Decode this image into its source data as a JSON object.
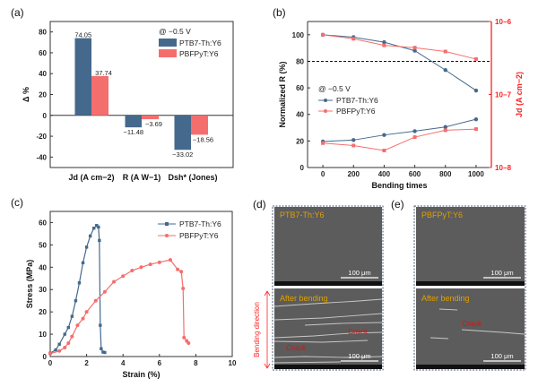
{
  "colors": {
    "blue": "#45698c",
    "red": "#f56e6e",
    "axis_red": "#ff2020",
    "sem_label": "#e0a000",
    "crack": "#e01010"
  },
  "panel_labels": [
    "(a)",
    "(b)",
    "(c)",
    "(d)",
    "(e)"
  ],
  "chart_data": [
    {
      "type": "bar",
      "panel": "(a)",
      "ylabel": "Δ %",
      "ylim": [
        -50,
        90
      ],
      "yticks": [
        -40,
        -20,
        0,
        20,
        40,
        60,
        80
      ],
      "categories": [
        "Jd (A cm−2)",
        "R (A W−1)",
        "Dsh* (Jones)"
      ],
      "legend_title": "@ −0.5 V",
      "series": [
        {
          "name": "PTB7-Th:Y6",
          "values": [
            74.05,
            -11.48,
            -33.02
          ],
          "labels": [
            "74.05",
            "−11.48",
            "−33.02"
          ]
        },
        {
          "name": "PBFPyT:Y6",
          "values": [
            37.74,
            -3.69,
            -18.56
          ],
          "labels": [
            "37.74",
            "−3.69",
            "−18.56"
          ]
        }
      ]
    },
    {
      "type": "line",
      "panel": "(b)",
      "xlabel": "Bending times",
      "ylabel": "Normalized R (%)",
      "y2label": "Jd (A cm−2)",
      "xlim": [
        -100,
        1100
      ],
      "ylim": [
        0,
        110
      ],
      "y2lim": [
        1e-08,
        1e-06
      ],
      "y2scale": "log",
      "xticks": [
        0,
        200,
        400,
        600,
        800,
        1000
      ],
      "yticks": [
        0,
        20,
        40,
        60,
        80,
        100
      ],
      "y2ticks": [
        "10−8",
        "10−7",
        "10−6"
      ],
      "reference_line": 80,
      "legend_title": "@ −0.5 V",
      "x": [
        0,
        200,
        400,
        600,
        800,
        1000
      ],
      "series": [
        {
          "name": "PTB7-Th:Y6",
          "R": [
            100,
            98.2,
            94.4,
            88,
            73.4,
            58
          ],
          "Jd": [
            2.27e-08,
            2.38e-08,
            2.79e-08,
            3.15e-08,
            3.59e-08,
            4.58e-08
          ]
        },
        {
          "name": "PBFPyT:Y6",
          "R": [
            100,
            97,
            92,
            90.3,
            87.4,
            81.7
          ],
          "Jd": [
            2.16e-08,
            2e-08,
            1.71e-08,
            2.61e-08,
            3.24e-08,
            3.36e-08
          ]
        }
      ]
    },
    {
      "type": "line",
      "panel": "(c)",
      "xlabel": "Strain (%)",
      "ylabel": "Stress (MPa)",
      "xlim": [
        0,
        10
      ],
      "ylim": [
        0,
        65
      ],
      "xticks": [
        0,
        2,
        4,
        6,
        8,
        10
      ],
      "yticks": [
        0,
        10,
        20,
        30,
        40,
        50,
        60
      ],
      "series": [
        {
          "name": "PTB7-Th:Y6",
          "points": [
            [
              0,
              1.5
            ],
            [
              0.3,
              3
            ],
            [
              0.5,
              5.5
            ],
            [
              0.8,
              10
            ],
            [
              1,
              13
            ],
            [
              1.2,
              18
            ],
            [
              1.4,
              25
            ],
            [
              1.6,
              33
            ],
            [
              1.8,
              42
            ],
            [
              2,
              49
            ],
            [
              2.2,
              54
            ],
            [
              2.4,
              57.5
            ],
            [
              2.55,
              58.7
            ],
            [
              2.65,
              58
            ],
            [
              2.7,
              52
            ],
            [
              2.75,
              14
            ],
            [
              2.8,
              3.5
            ],
            [
              2.9,
              2
            ],
            [
              3,
              1.8
            ]
          ]
        },
        {
          "name": "PBFPyT:Y6",
          "points": [
            [
              0,
              1.3
            ],
            [
              0.5,
              2.5
            ],
            [
              0.8,
              4
            ],
            [
              1,
              6
            ],
            [
              1.2,
              9
            ],
            [
              1.5,
              14
            ],
            [
              1.8,
              17
            ],
            [
              2,
              20
            ],
            [
              2.5,
              25
            ],
            [
              3,
              29
            ],
            [
              3.5,
              33.5
            ],
            [
              4,
              36
            ],
            [
              4.5,
              38.5
            ],
            [
              5,
              40
            ],
            [
              5.5,
              41.3
            ],
            [
              6,
              42.2
            ],
            [
              6.6,
              43.3
            ],
            [
              7,
              39
            ],
            [
              7.2,
              38
            ],
            [
              7.3,
              30.5
            ],
            [
              7.35,
              8.5
            ],
            [
              7.5,
              7
            ],
            [
              7.6,
              6
            ]
          ]
        }
      ]
    }
  ],
  "sem": {
    "d_top_label": "PTB7-Th:Y6",
    "e_top_label": "PBFPyT:Y6",
    "after_label": "After bending",
    "crack_label": "Crack",
    "scale_bar": "100 μm",
    "bending_direction": "Bending direction"
  }
}
